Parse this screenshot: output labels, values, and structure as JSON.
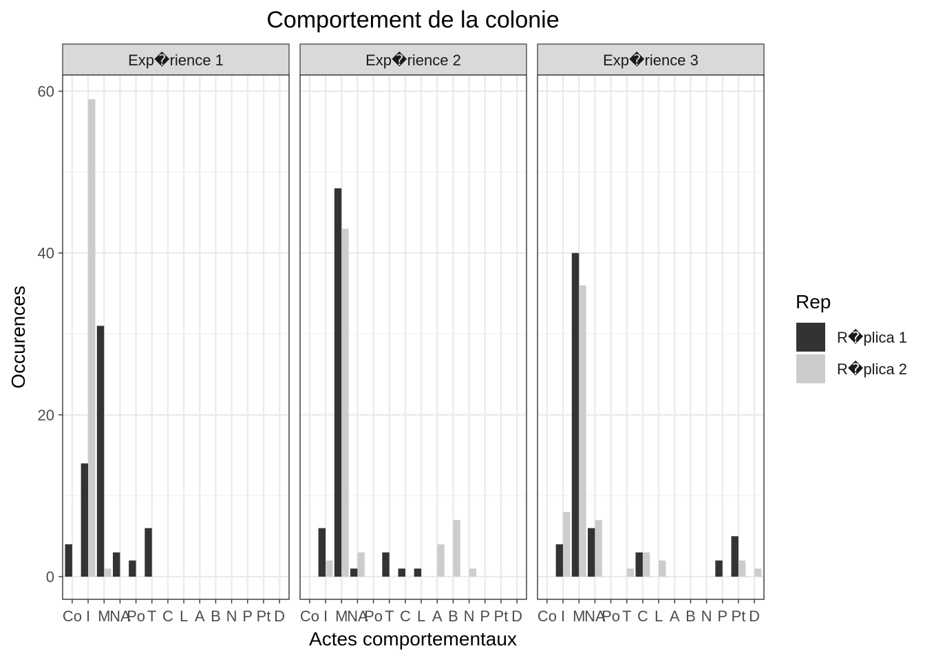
{
  "chart_data": {
    "type": "bar",
    "title": "Comportement de la colonie",
    "xlabel": "Actes comportementaux",
    "ylabel": "Occurences",
    "ylim": [
      -2.8,
      62
    ],
    "yticks": [
      0,
      20,
      40,
      60
    ],
    "grid": true,
    "legend": {
      "title": "Rep",
      "placement": "right",
      "entries": [
        {
          "label": "R�plica 1",
          "color": "#333333"
        },
        {
          "label": "R�plica 2",
          "color": "#cccccc"
        }
      ]
    },
    "categories": [
      "Co",
      "I",
      "M",
      "NA",
      "Po",
      "T",
      "C",
      "L",
      "A",
      "B",
      "N",
      "P",
      "Pt",
      "D"
    ],
    "panels": [
      {
        "strip": "Exp�rience 1",
        "series": [
          {
            "name": "R�plica 1",
            "values": [
              4,
              14,
              31,
              3,
              2,
              6,
              0,
              0,
              0,
              0,
              0,
              0,
              0,
              0
            ]
          },
          {
            "name": "R�plica 2",
            "values": [
              0,
              59,
              1,
              0,
              0,
              0,
              0,
              0,
              0,
              0,
              0,
              0,
              0,
              0
            ]
          }
        ]
      },
      {
        "strip": "Exp�rience 2",
        "series": [
          {
            "name": "R�plica 1",
            "values": [
              0,
              6,
              48,
              1,
              0,
              3,
              1,
              1,
              0,
              0,
              0,
              0,
              0,
              0
            ]
          },
          {
            "name": "R�plica 2",
            "values": [
              0,
              2,
              43,
              3,
              0,
              0,
              0,
              0,
              4,
              7,
              1,
              0,
              0,
              0
            ]
          }
        ]
      },
      {
        "strip": "Exp�rience 3",
        "series": [
          {
            "name": "R�plica 1",
            "values": [
              0,
              4,
              40,
              6,
              0,
              0,
              3,
              0,
              0,
              0,
              0,
              2,
              5,
              0
            ]
          },
          {
            "name": "R�plica 2",
            "values": [
              0,
              8,
              36,
              7,
              0,
              1,
              3,
              2,
              0,
              0,
              0,
              0,
              2,
              1
            ]
          }
        ]
      }
    ],
    "colors": {
      "replica1": "#333333",
      "replica2": "#cccccc",
      "strip_fill": "#d9d9d9",
      "grid": "#ebebeb",
      "border": "#333333"
    }
  }
}
